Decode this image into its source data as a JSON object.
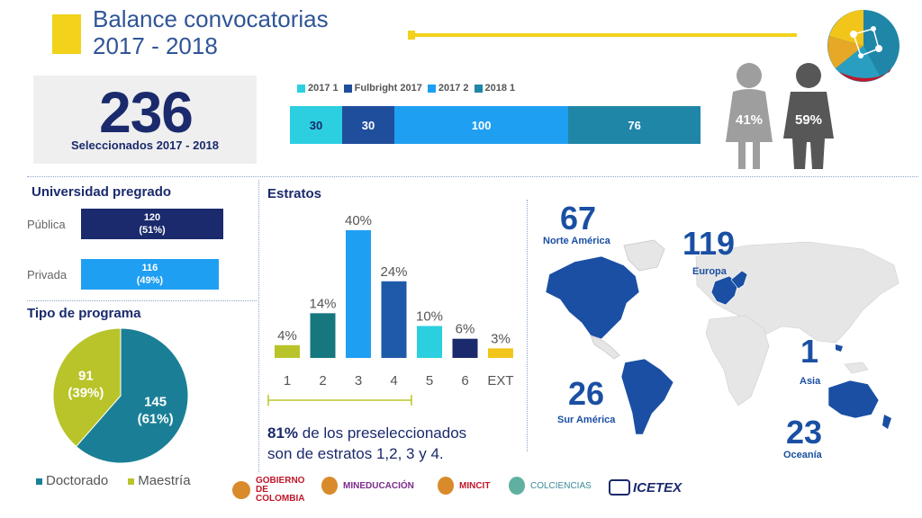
{
  "title": {
    "line1": "Balance convocatorias",
    "line2": "2017 - 2018"
  },
  "summary": {
    "total": "236",
    "label": "Seleccionados 2017 - 2018"
  },
  "gender": {
    "female": "41%",
    "male": "59%"
  },
  "colors": {
    "navy": "#1f3274",
    "cyan": "#2ccfe0",
    "blue": "#1f9ff2",
    "teal": "#1f86a8",
    "green": "#b8c42a",
    "yellow": "#f2c51b",
    "darkteal": "#17777f"
  },
  "sections": {
    "universidad": "Universidad pregrado",
    "tipo": "Tipo de programa",
    "estratos": "Estratos"
  },
  "note": {
    "bold": "81%",
    "rest1": " de los preseleccionados",
    "line2": "son de estratos 1,2, 3 y 4."
  },
  "chart_data": [
    {
      "type": "bar",
      "orientation": "horizontal-stacked",
      "series": [
        {
          "name": "2017 1",
          "values": [
            30
          ],
          "color": "#2ccfe0",
          "label": "30"
        },
        {
          "name": "Fulbright 2017",
          "values": [
            30
          ],
          "color": "#1f4e9c",
          "label": "30"
        },
        {
          "name": "2017 2",
          "values": [
            100
          ],
          "color": "#1f9ff2",
          "label": "100"
        },
        {
          "name": "2018 1",
          "values": [
            76
          ],
          "color": "#1f86a8",
          "label": "76"
        }
      ]
    },
    {
      "type": "bar",
      "orientation": "horizontal",
      "categories": [
        "Pública",
        "Privada"
      ],
      "values": [
        120,
        116
      ],
      "labels": [
        "120",
        "116"
      ],
      "sublabels": [
        "(51%)",
        "(49%)"
      ],
      "colors": [
        "#1a2a6c",
        "#1f9ff2"
      ]
    },
    {
      "type": "pie",
      "categories": [
        "Doctorado",
        "Maestría"
      ],
      "values": [
        145,
        91
      ],
      "labels": [
        "145",
        "91"
      ],
      "sublabels": [
        "(61%)",
        "(39%)"
      ],
      "colors": [
        "#1a7f96",
        "#b8c42a"
      ]
    },
    {
      "type": "bar",
      "categories": [
        "1",
        "2",
        "3",
        "4",
        "5",
        "6",
        "EXT"
      ],
      "values": [
        4,
        14,
        40,
        24,
        10,
        6,
        3
      ],
      "labels": [
        "4%",
        "14%",
        "40%",
        "24%",
        "10%",
        "6%",
        "3%"
      ],
      "colors": [
        "#b8c42a",
        "#17777f",
        "#1f9ff2",
        "#1f5aa8",
        "#2ccfe0",
        "#1a2a6c",
        "#f2c51b"
      ],
      "ylim": [
        0,
        40
      ]
    }
  ],
  "regions": [
    {
      "number": "67",
      "name": "Norte América"
    },
    {
      "number": "119",
      "name": "Europa"
    },
    {
      "number": "1",
      "name": "Asia"
    },
    {
      "number": "26",
      "name": "Sur América"
    },
    {
      "number": "23",
      "name": "Oceanía"
    }
  ],
  "logos": [
    "GOBIERNO DE COLOMBIA",
    "MINEDUCACIÓN",
    "MINCIT",
    "COLCIENCIAS",
    "ICETEX"
  ]
}
